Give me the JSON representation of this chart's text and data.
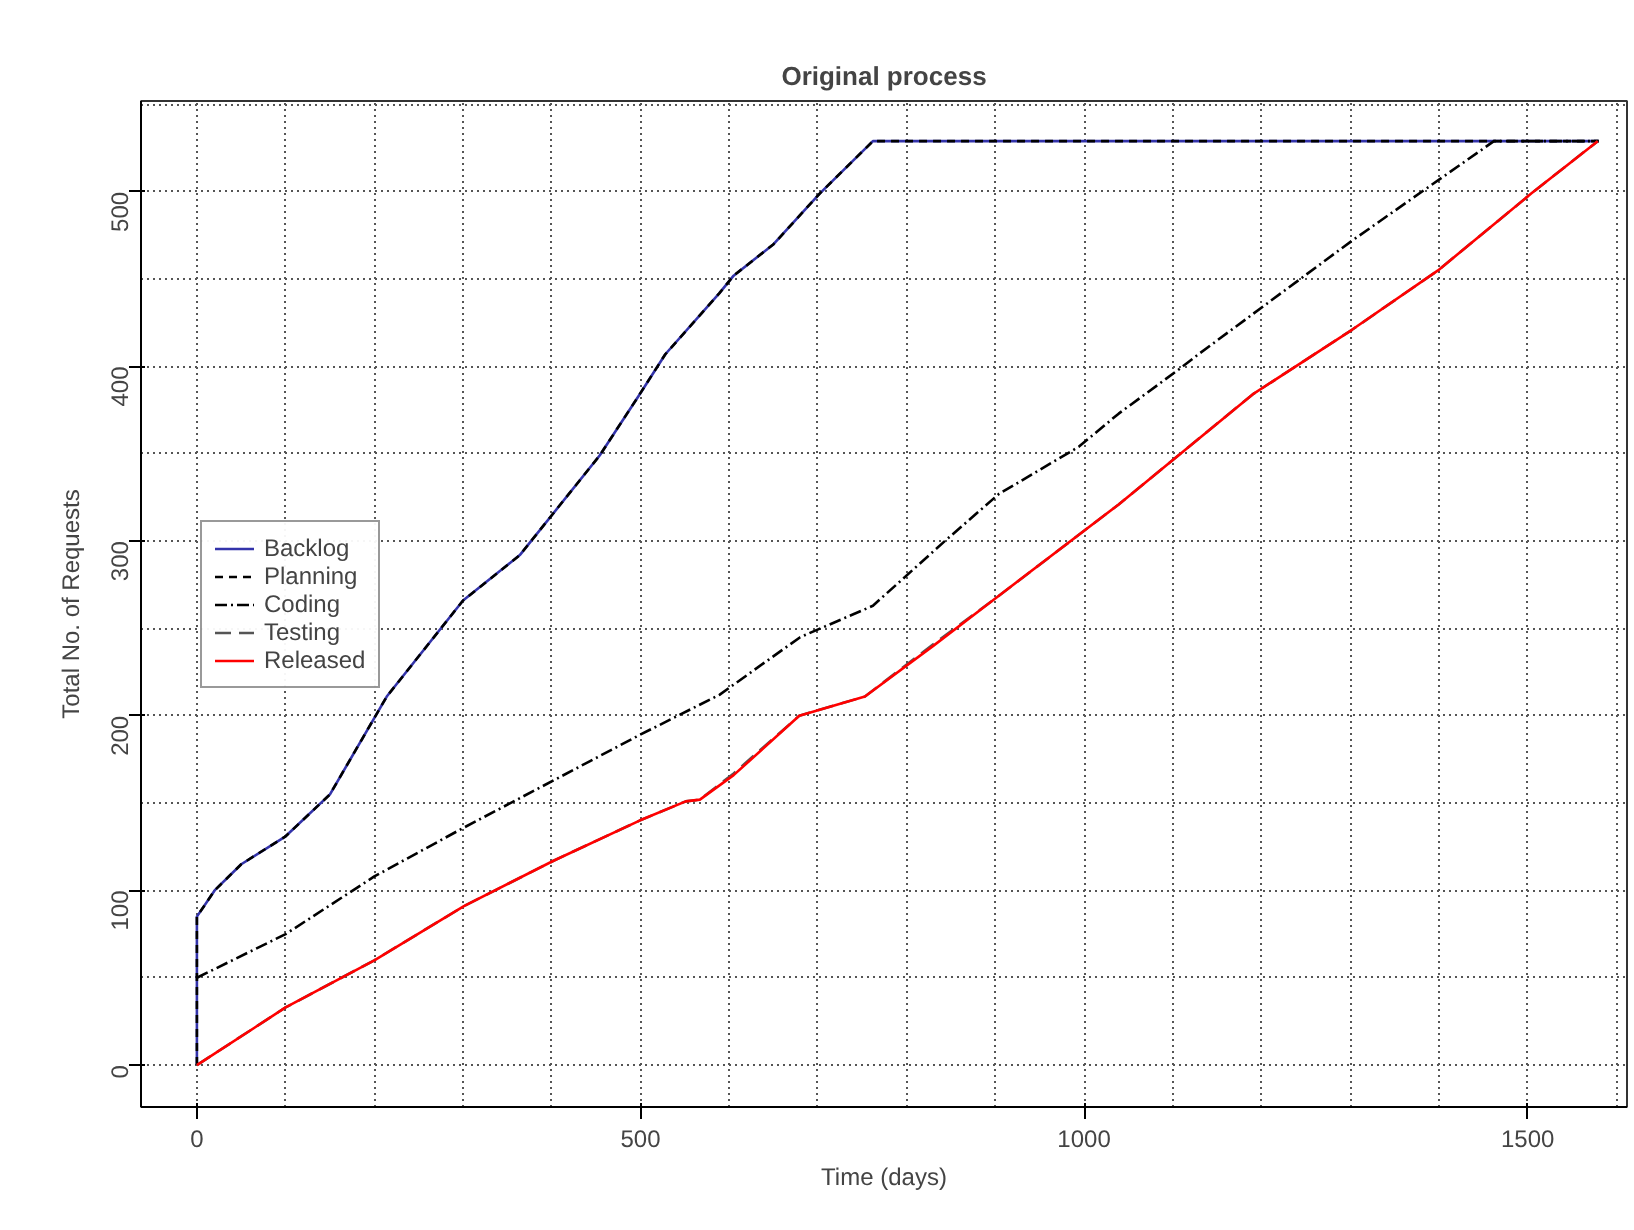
{
  "chart_data": {
    "type": "line",
    "title": "Original process",
    "xlabel": "Time (days)",
    "ylabel": "Total No. of Requests",
    "xlim": [
      -63,
      1612
    ],
    "ylim": [
      -24,
      552
    ],
    "xticks": [
      0,
      500,
      1000,
      1500
    ],
    "yticks": [
      0,
      100,
      200,
      300,
      400,
      500
    ],
    "grid": true,
    "legend": "left",
    "marker": "none",
    "series": [
      {
        "name": "Backlog",
        "color": "#3333aa",
        "line_style": "solid",
        "x": [
          0,
          0,
          20,
          50,
          100,
          150,
          214,
          300,
          364,
          454,
          499,
          528,
          589,
          605,
          650,
          702,
          762,
          1580
        ],
        "values": [
          0,
          85,
          100,
          115,
          131,
          155,
          211,
          266,
          292,
          349,
          384,
          407,
          442,
          452,
          470,
          499,
          529,
          529
        ]
      },
      {
        "name": "Planning",
        "color": "#000000",
        "line_style": "dashed",
        "x": [
          0,
          0,
          20,
          50,
          100,
          150,
          214,
          300,
          364,
          454,
          499,
          528,
          589,
          605,
          650,
          702,
          762,
          1580
        ],
        "values": [
          0,
          85,
          100,
          115,
          131,
          155,
          211,
          266,
          292,
          349,
          384,
          407,
          442,
          452,
          470,
          499,
          529,
          529
        ]
      },
      {
        "name": "Coding",
        "color": "#000000",
        "line_style": "dashdot",
        "x": [
          0,
          100,
          200,
          301,
          402,
          499,
          589,
          680,
          762,
          843,
          904,
          994,
          1039,
          1106,
          1129,
          1302,
          1462,
          1580
        ],
        "values": [
          50,
          75,
          108,
          136,
          163,
          189,
          212,
          245,
          263,
          300,
          327,
          354,
          373,
          398,
          407,
          472,
          529,
          529
        ]
      },
      {
        "name": "Testing",
        "color": "#555555",
        "line_style": "longdash",
        "x": [
          0,
          100,
          200,
          301,
          402,
          499,
          551,
          567,
          605,
          679,
          753,
          830,
          897,
          1039,
          1190,
          1302,
          1399,
          1504,
          1579
        ],
        "values": [
          0,
          33,
          60,
          91,
          117,
          140,
          151,
          152,
          167,
          200,
          211,
          241,
          266,
          321,
          384,
          421,
          455,
          499,
          529
        ]
      },
      {
        "name": "Released",
        "color": "#ff0000",
        "line_style": "solid",
        "x": [
          0,
          100,
          200,
          301,
          402,
          499,
          551,
          567,
          605,
          679,
          753,
          830,
          897,
          1039,
          1190,
          1302,
          1399,
          1504,
          1579
        ],
        "values": [
          0,
          33,
          60,
          91,
          117,
          140,
          151,
          152,
          166,
          200,
          211,
          240,
          266,
          321,
          384,
          421,
          455,
          499,
          529
        ]
      }
    ]
  }
}
